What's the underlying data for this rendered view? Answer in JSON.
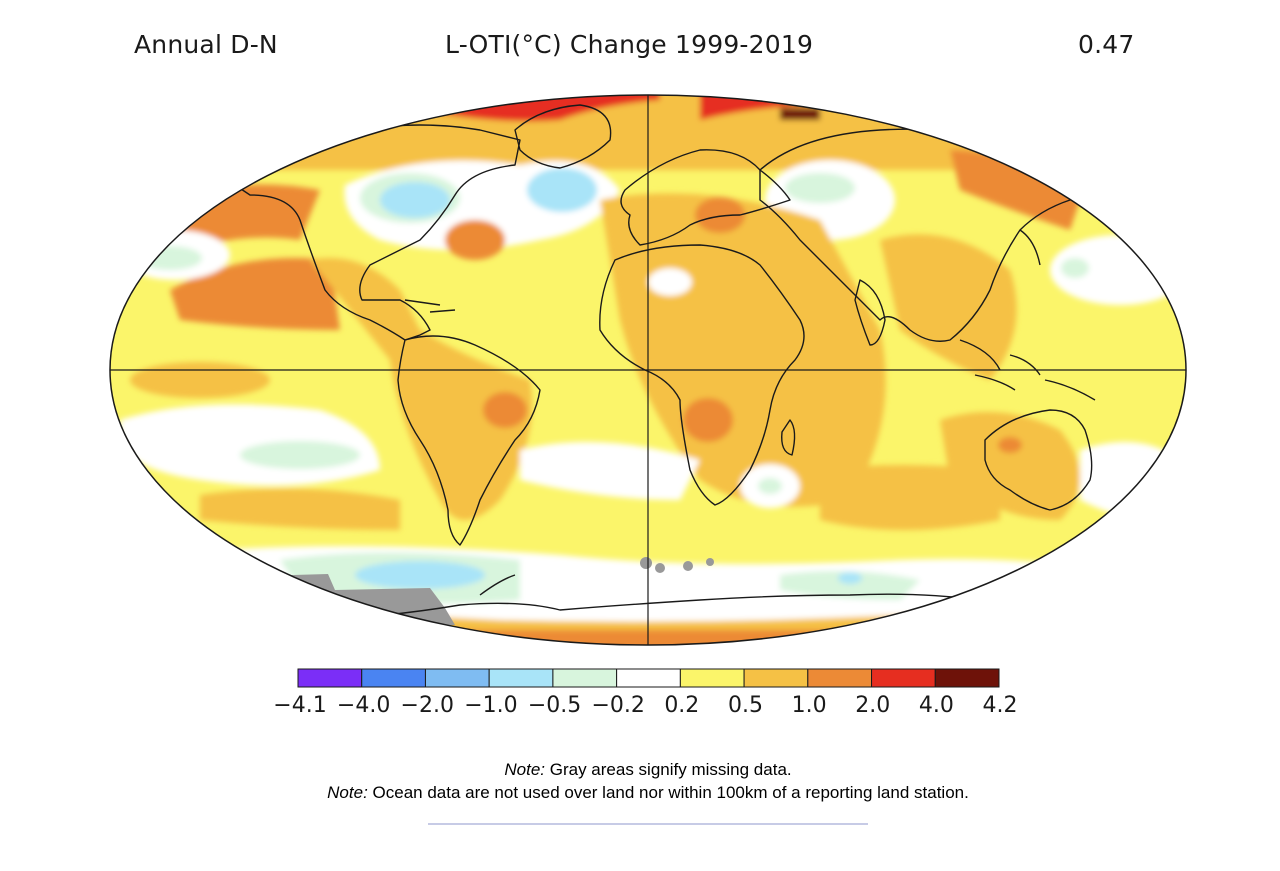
{
  "header": {
    "left_label": "Annual D-N",
    "title": "L-OTI(°C) Change 1999-2019",
    "global_mean": "0.47"
  },
  "legend": {
    "tick_labels": [
      "−4.1",
      "−4.0",
      "−2.0",
      "−1.0",
      "−0.5",
      "−0.2",
      "0.2",
      "0.5",
      "1.0",
      "2.0",
      "4.0",
      "4.2"
    ],
    "bin_colors": [
      "#7b2ef7",
      "#4a84f2",
      "#7fbcf2",
      "#a9e4f8",
      "#d8f5dd",
      "#ffffff",
      "#fbf56a",
      "#f5c145",
      "#ec8a36",
      "#e62e20",
      "#6e1209"
    ],
    "missing_color": "#999999"
  },
  "notes": [
    {
      "label": "Note:",
      "text": " Gray areas signify missing data."
    },
    {
      "label": "Note:",
      "text": " Ocean data are not used over land nor within 100km of a reporting land station."
    }
  ],
  "chart_data": {
    "type": "heatmap",
    "projection": "Robinson",
    "title": "L-OTI(°C) Change 1999-2019",
    "period": "Annual D-N",
    "global_mean_change": 0.47,
    "units": "°C",
    "color_scale_bins": [
      -4.1,
      -4.0,
      -2.0,
      -1.0,
      -0.5,
      -0.2,
      0.2,
      0.5,
      1.0,
      2.0,
      4.0,
      4.2
    ],
    "missing_data_regions": [
      "Antarctic coast south of Pacific",
      "small South Atlantic patches"
    ]
  }
}
